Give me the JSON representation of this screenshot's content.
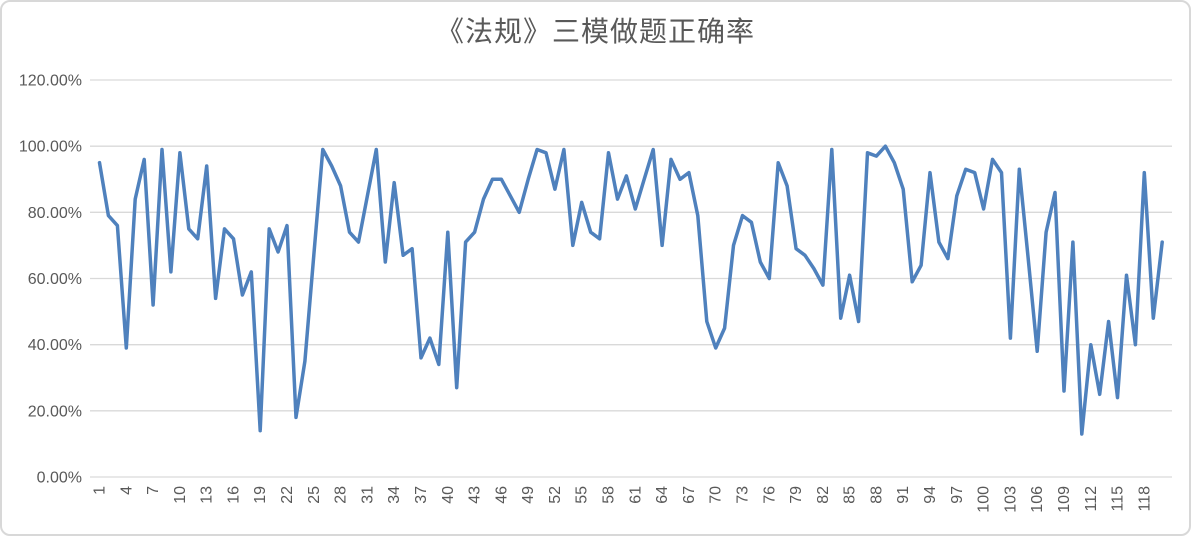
{
  "title": "《法规》三模做题正确率",
  "chart_data": {
    "type": "line",
    "title": "《法规》三模做题正确率",
    "x_first": 1,
    "x_last": 120,
    "values_unit": "percent",
    "values": [
      95,
      79,
      76,
      39,
      84,
      96,
      52,
      99,
      62,
      98,
      75,
      72,
      94,
      54,
      75,
      72,
      55,
      62,
      14,
      75,
      68,
      76,
      18,
      35,
      67,
      99,
      94,
      88,
      74,
      71,
      85,
      99,
      65,
      89,
      67,
      69,
      36,
      42,
      34,
      74,
      27,
      71,
      74,
      84,
      90,
      90,
      85,
      80,
      90,
      99,
      98,
      87,
      99,
      70,
      83,
      74,
      72,
      98,
      84,
      91,
      81,
      90,
      99,
      70,
      96,
      90,
      92,
      79,
      47,
      39,
      45,
      70,
      79,
      77,
      65,
      60,
      95,
      88,
      69,
      67,
      63,
      58,
      99,
      48,
      61,
      47,
      98,
      97,
      100,
      95,
      87,
      59,
      64,
      92,
      71,
      66,
      85,
      93,
      92,
      81,
      96,
      92,
      42,
      93,
      66,
      38,
      74,
      86,
      26,
      71,
      13,
      40,
      25,
      47,
      24,
      61,
      40,
      92,
      48,
      71
    ],
    "ylim": [
      0,
      120
    ],
    "ytick_step": 20,
    "ytick_labels": [
      "0.00%",
      "20.00%",
      "40.00%",
      "60.00%",
      "80.00%",
      "100.00%",
      "120.00%"
    ],
    "xtick_labels": [
      "1",
      "4",
      "7",
      "10",
      "13",
      "16",
      "19",
      "22",
      "25",
      "28",
      "31",
      "34",
      "37",
      "40",
      "43",
      "46",
      "49",
      "52",
      "55",
      "58",
      "61",
      "64",
      "67",
      "70",
      "73",
      "76",
      "79",
      "82",
      "85",
      "88",
      "91",
      "94",
      "97",
      "100",
      "103",
      "106",
      "109",
      "112",
      "115",
      "118"
    ],
    "xtick_interval": 3,
    "grid": true,
    "legend": "none",
    "line_color": "#4f81bd",
    "grid_color": "#d9d9d9",
    "axis_color": "#d9d9d9",
    "label_color": "#595959",
    "title_color": "#595959"
  }
}
